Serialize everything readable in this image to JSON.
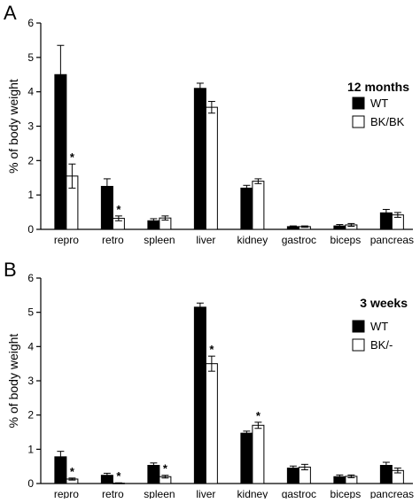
{
  "chart_data": [
    {
      "type": "bar",
      "panel_letter": "A",
      "annotation": "12 months",
      "ylabel": "% of body weight",
      "ylim": [
        0,
        6
      ],
      "yticks": [
        "0",
        "1",
        "2",
        "3",
        "4",
        "5",
        "6"
      ],
      "categories": [
        "repro",
        "retro",
        "spleen",
        "liver",
        "kidney",
        "gastroc",
        "biceps",
        "pancreas"
      ],
      "legend_placement": "right",
      "series": [
        {
          "name": "WT",
          "color": "#000000",
          "values": [
            4.5,
            1.25,
            0.25,
            4.1,
            1.2,
            0.08,
            0.1,
            0.48
          ],
          "errors": [
            0.85,
            0.22,
            0.06,
            0.15,
            0.08,
            0.02,
            0.04,
            0.1
          ],
          "significance": [
            "",
            "",
            "",
            "",
            "",
            "",
            "",
            ""
          ]
        },
        {
          "name": "BK/BK",
          "color": "#ffffff",
          "values": [
            1.55,
            0.32,
            0.33,
            3.55,
            1.4,
            0.08,
            0.13,
            0.42
          ],
          "errors": [
            0.35,
            0.07,
            0.06,
            0.17,
            0.07,
            0.02,
            0.04,
            0.07
          ],
          "significance": [
            "*",
            "*",
            "",
            "",
            "",
            "",
            "",
            ""
          ]
        }
      ]
    },
    {
      "type": "bar",
      "panel_letter": "B",
      "annotation": "3 weeks",
      "ylabel": "% of body weight",
      "ylim": [
        0,
        6
      ],
      "yticks": [
        "0",
        "1",
        "2",
        "3",
        "4",
        "5",
        "6"
      ],
      "categories": [
        "repro",
        "retro",
        "spleen",
        "liver",
        "kidney",
        "gastroc",
        "biceps",
        "pancreas"
      ],
      "legend_placement": "right",
      "series": [
        {
          "name": "WT",
          "color": "#000000",
          "values": [
            0.78,
            0.24,
            0.53,
            5.15,
            1.47,
            0.45,
            0.2,
            0.53
          ],
          "errors": [
            0.16,
            0.06,
            0.07,
            0.12,
            0.06,
            0.06,
            0.05,
            0.09
          ],
          "significance": [
            "",
            "",
            "",
            "",
            "",
            "",
            "",
            ""
          ]
        },
        {
          "name": "BK/-",
          "color": "#ffffff",
          "values": [
            0.13,
            0.01,
            0.2,
            3.5,
            1.7,
            0.48,
            0.21,
            0.38
          ],
          "errors": [
            0.03,
            0.01,
            0.04,
            0.22,
            0.09,
            0.08,
            0.04,
            0.07
          ],
          "significance": [
            "*",
            "*",
            "*",
            "*",
            "*",
            "",
            "",
            ""
          ]
        }
      ]
    }
  ]
}
